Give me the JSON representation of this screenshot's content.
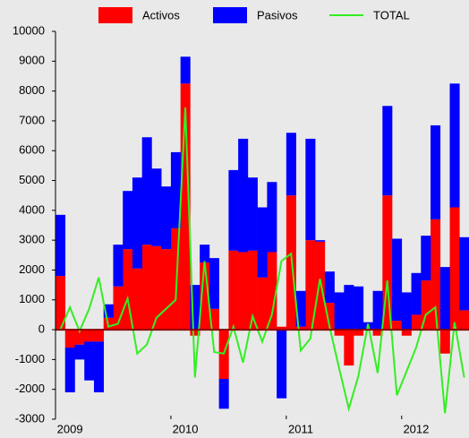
{
  "chart_data": {
    "type": "bar",
    "categories": [
      null,
      "2009",
      null,
      null,
      null,
      null,
      null,
      null,
      null,
      null,
      null,
      null,
      null,
      "2010",
      null,
      null,
      null,
      null,
      null,
      null,
      null,
      null,
      null,
      null,
      null,
      "2011",
      null,
      null,
      null,
      null,
      null,
      null,
      null,
      null,
      null,
      null,
      null,
      "2012",
      null,
      null,
      null,
      null,
      null
    ],
    "series": [
      {
        "name": "Activos",
        "color": "#ff0000",
        "type": "bar",
        "values": [
          1800,
          -600,
          -500,
          -400,
          -400,
          400,
          1450,
          2700,
          2050,
          2850,
          2800,
          2700,
          3400,
          8250,
          -200,
          2250,
          700,
          -1650,
          2650,
          2600,
          2650,
          1750,
          2600,
          100,
          4500,
          100,
          3000,
          2950,
          900,
          -200,
          -1200,
          -200,
          0,
          -200,
          4500,
          300,
          -200,
          500,
          1650,
          3700,
          -800,
          4100,
          650
        ]
      },
      {
        "name": "Pasivos",
        "color": "#0000ff",
        "type": "bar",
        "values": [
          2050,
          -1500,
          -500,
          -1300,
          -1700,
          450,
          1400,
          1950,
          3050,
          3600,
          2600,
          2100,
          2550,
          900,
          1500,
          600,
          1700,
          -1000,
          2700,
          3800,
          2450,
          2350,
          2350,
          -2300,
          2100,
          1200,
          3400,
          50,
          1050,
          1250,
          1500,
          1450,
          250,
          1300,
          3000,
          2750,
          1250,
          1400,
          1500,
          3150,
          2100,
          4150,
          2450
        ]
      },
      {
        "name": "TOTAL",
        "color": "#33ee22",
        "type": "line",
        "values": [
          0,
          750,
          -50,
          700,
          1750,
          100,
          200,
          1050,
          -800,
          -500,
          400,
          700,
          1000,
          7450,
          -1600,
          2300,
          -750,
          -800,
          100,
          -1100,
          450,
          -400,
          500,
          2300,
          2550,
          -700,
          -300,
          1700,
          100,
          -1300,
          -2650,
          -1550,
          200,
          -1450,
          1650,
          -2200,
          -1400,
          -600,
          500,
          750,
          -2800,
          250,
          -1600
        ]
      }
    ],
    "ylim": [
      -3000,
      10000
    ],
    "yticks": [
      -3000,
      -2000,
      -1000,
      0,
      1000,
      2000,
      3000,
      4000,
      5000,
      6000,
      7000,
      8000,
      9000,
      10000
    ],
    "legend": "top"
  }
}
